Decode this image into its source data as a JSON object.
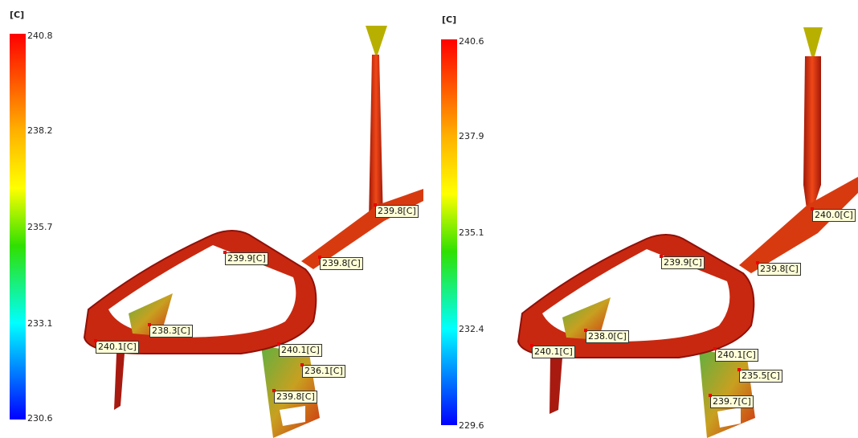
{
  "panels": [
    {
      "unit": "[C]",
      "scale": [
        "240.8",
        "238.2",
        "235.7",
        "233.1",
        "230.6"
      ],
      "probes": [
        "239.8[C]",
        "239.9[C]",
        "239.8[C]",
        "238.3[C]",
        "240.1[C]",
        "240.1[C]",
        "236.1[C]",
        "239.8[C]"
      ]
    },
    {
      "unit": "[C]",
      "scale": [
        "240.6",
        "237.9",
        "235.1",
        "232.4",
        "229.6"
      ],
      "probes": [
        "240.0[C]",
        "239.9[C]",
        "239.8[C]",
        "238.0[C]",
        "240.1[C]",
        "240.1[C]",
        "235.5[C]",
        "239.7[C]"
      ]
    }
  ]
}
